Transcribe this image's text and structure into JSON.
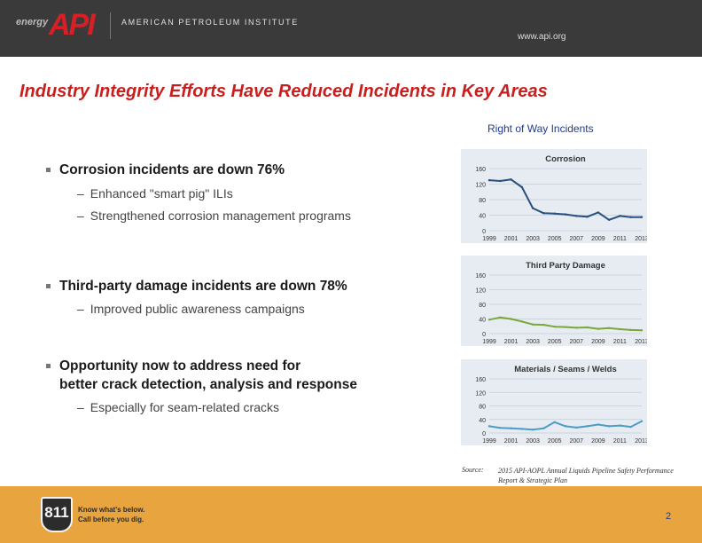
{
  "header": {
    "logo_small": "energy",
    "logo_main": "API",
    "org_name": "AMERICAN PETROLEUM INSTITUTE",
    "website": "www.api.org"
  },
  "title": "Industry Integrity Efforts Have Reduced Incidents in Key Areas",
  "section_heading": "Right of Way Incidents",
  "bullets": [
    {
      "text_lines": [
        "Corrosion incidents are down 76%"
      ],
      "subs": [
        "Enhanced \"smart pig\" ILIs",
        "Strengthened corrosion management programs"
      ]
    },
    {
      "text_lines": [
        "Third-party damage incidents are down 78%"
      ],
      "subs": [
        "Improved public awareness campaigns"
      ]
    },
    {
      "text_lines": [
        "Opportunity now to address need for",
        "better crack detection, analysis and response"
      ],
      "subs": [
        "Especially for seam-related cracks"
      ]
    }
  ],
  "chart_data": [
    {
      "type": "line",
      "title": "Corrosion",
      "x": [
        1999,
        2000,
        2001,
        2002,
        2003,
        2004,
        2005,
        2006,
        2007,
        2008,
        2009,
        2010,
        2011,
        2012,
        2013
      ],
      "xticks": [
        "1999",
        "2001",
        "2003",
        "2005",
        "2007",
        "2009",
        "2011",
        "2013"
      ],
      "series": [
        {
          "values": [
            130,
            128,
            132,
            112,
            58,
            45,
            44,
            42,
            38,
            36,
            47,
            28,
            38,
            35,
            35
          ]
        }
      ],
      "ylim": [
        0,
        160
      ],
      "yticks": [
        "0",
        "40",
        "80",
        "120",
        "160"
      ],
      "line_color": "#27507e",
      "grid": true
    },
    {
      "type": "line",
      "title": "Third Party Damage",
      "x": [
        1999,
        2000,
        2001,
        2002,
        2003,
        2004,
        2005,
        2006,
        2007,
        2008,
        2009,
        2010,
        2011,
        2012,
        2013
      ],
      "xticks": [
        "1999",
        "2001",
        "2003",
        "2005",
        "2007",
        "2009",
        "2011",
        "2013"
      ],
      "series": [
        {
          "values": [
            38,
            44,
            40,
            33,
            25,
            24,
            19,
            18,
            16,
            17,
            13,
            15,
            12,
            10,
            9
          ]
        }
      ],
      "ylim": [
        0,
        160
      ],
      "yticks": [
        "0",
        "40",
        "80",
        "120",
        "160"
      ],
      "line_color": "#7aa83a",
      "grid": true
    },
    {
      "type": "line",
      "title": "Materials / Seams / Welds",
      "x": [
        1999,
        2000,
        2001,
        2002,
        2003,
        2004,
        2005,
        2006,
        2007,
        2008,
        2009,
        2010,
        2011,
        2012,
        2013
      ],
      "xticks": [
        "1999",
        "2001",
        "2003",
        "2005",
        "2007",
        "2009",
        "2011",
        "2013"
      ],
      "series": [
        {
          "values": [
            20,
            15,
            14,
            12,
            10,
            14,
            32,
            20,
            16,
            20,
            25,
            20,
            22,
            18,
            35
          ]
        }
      ],
      "ylim": [
        0,
        160
      ],
      "yticks": [
        "0",
        "40",
        "80",
        "120",
        "160"
      ],
      "line_color": "#4b9dc8",
      "grid": true
    }
  ],
  "source": {
    "label": "Source:",
    "text": "2015 API-AOPL Annual Liquids Pipeline Safety Performance Report & Strategic Plan"
  },
  "footer": {
    "badge": "811",
    "tagline1": "Know what's below.",
    "tagline2": "Call before you dig."
  },
  "page_number": "2",
  "colors": {
    "header_bg": "#3a3a3a",
    "title_red": "#c81e1e",
    "heading_blue": "#1f3b8a",
    "footer_orange": "#e8a53f",
    "chart_bg": "#e6ecf2"
  }
}
